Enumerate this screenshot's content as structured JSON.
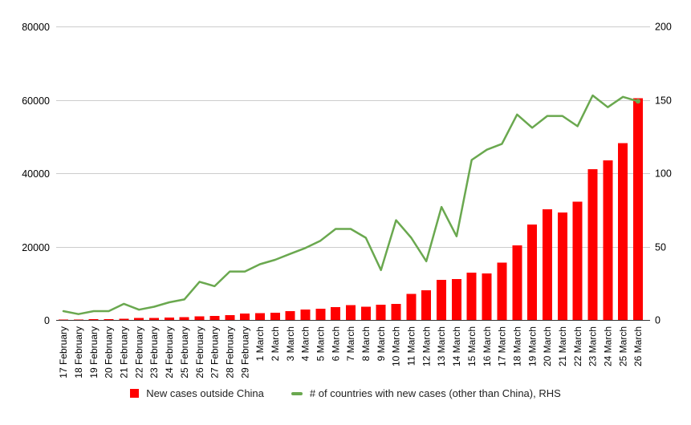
{
  "chart_data": {
    "type": "combo-bar-line",
    "title": "",
    "grid": true,
    "legend_position": "bottom",
    "categories": [
      "17 February",
      "18 February",
      "19 February",
      "20 February",
      "21 February",
      "22 February",
      "23 February",
      "24 February",
      "25 February",
      "26 February",
      "27 February",
      "28 February",
      "29 February",
      "1 March",
      "2 March",
      "3 March",
      "4 March",
      "5 March",
      "6 March",
      "7 March",
      "8 March",
      "9 March",
      "10 March",
      "11 March",
      "12 March",
      "13 March",
      "14 March",
      "15 March",
      "16 March",
      "17 March",
      "18 March",
      "19 March",
      "20 March",
      "21 March",
      "22 March",
      "23 March",
      "24 March",
      "25 March",
      "26 March"
    ],
    "series": [
      {
        "name": "New cases outside China",
        "type": "bar",
        "axis": "left",
        "color": "#ff0000",
        "values": [
          150,
          130,
          200,
          250,
          340,
          500,
          560,
          650,
          750,
          950,
          1100,
          1300,
          1700,
          1850,
          2000,
          2350,
          2850,
          3100,
          3500,
          4000,
          3650,
          4100,
          4400,
          7100,
          8100,
          10900,
          11100,
          12900,
          12700,
          15600,
          20300,
          26000,
          30200,
          29300,
          32200,
          41100,
          43500,
          48200,
          60400
        ]
      },
      {
        "name": "# of countries with new cases (other than China), RHS",
        "type": "line",
        "axis": "right",
        "color": "#6aa84f",
        "values": [
          6,
          4,
          6,
          6,
          11,
          7,
          9,
          12,
          14,
          26,
          23,
          33,
          33,
          38,
          41,
          45,
          49,
          54,
          62,
          62,
          56,
          34,
          68,
          56,
          40,
          77,
          57,
          109,
          116,
          120,
          140,
          131,
          139,
          139,
          132,
          153,
          145,
          152,
          149
        ]
      }
    ],
    "left_axis": {
      "range": [
        0,
        80000
      ],
      "ticks": [
        0,
        20000,
        40000,
        60000,
        80000
      ]
    },
    "right_axis": {
      "range": [
        0,
        200
      ],
      "ticks": [
        0,
        50,
        100,
        150,
        200
      ]
    }
  },
  "style_colors": {
    "gridline": "#cccccc",
    "baseline": "#333333",
    "tick_text": "#000000",
    "legend_text": "#212121",
    "background": "#ffffff"
  }
}
